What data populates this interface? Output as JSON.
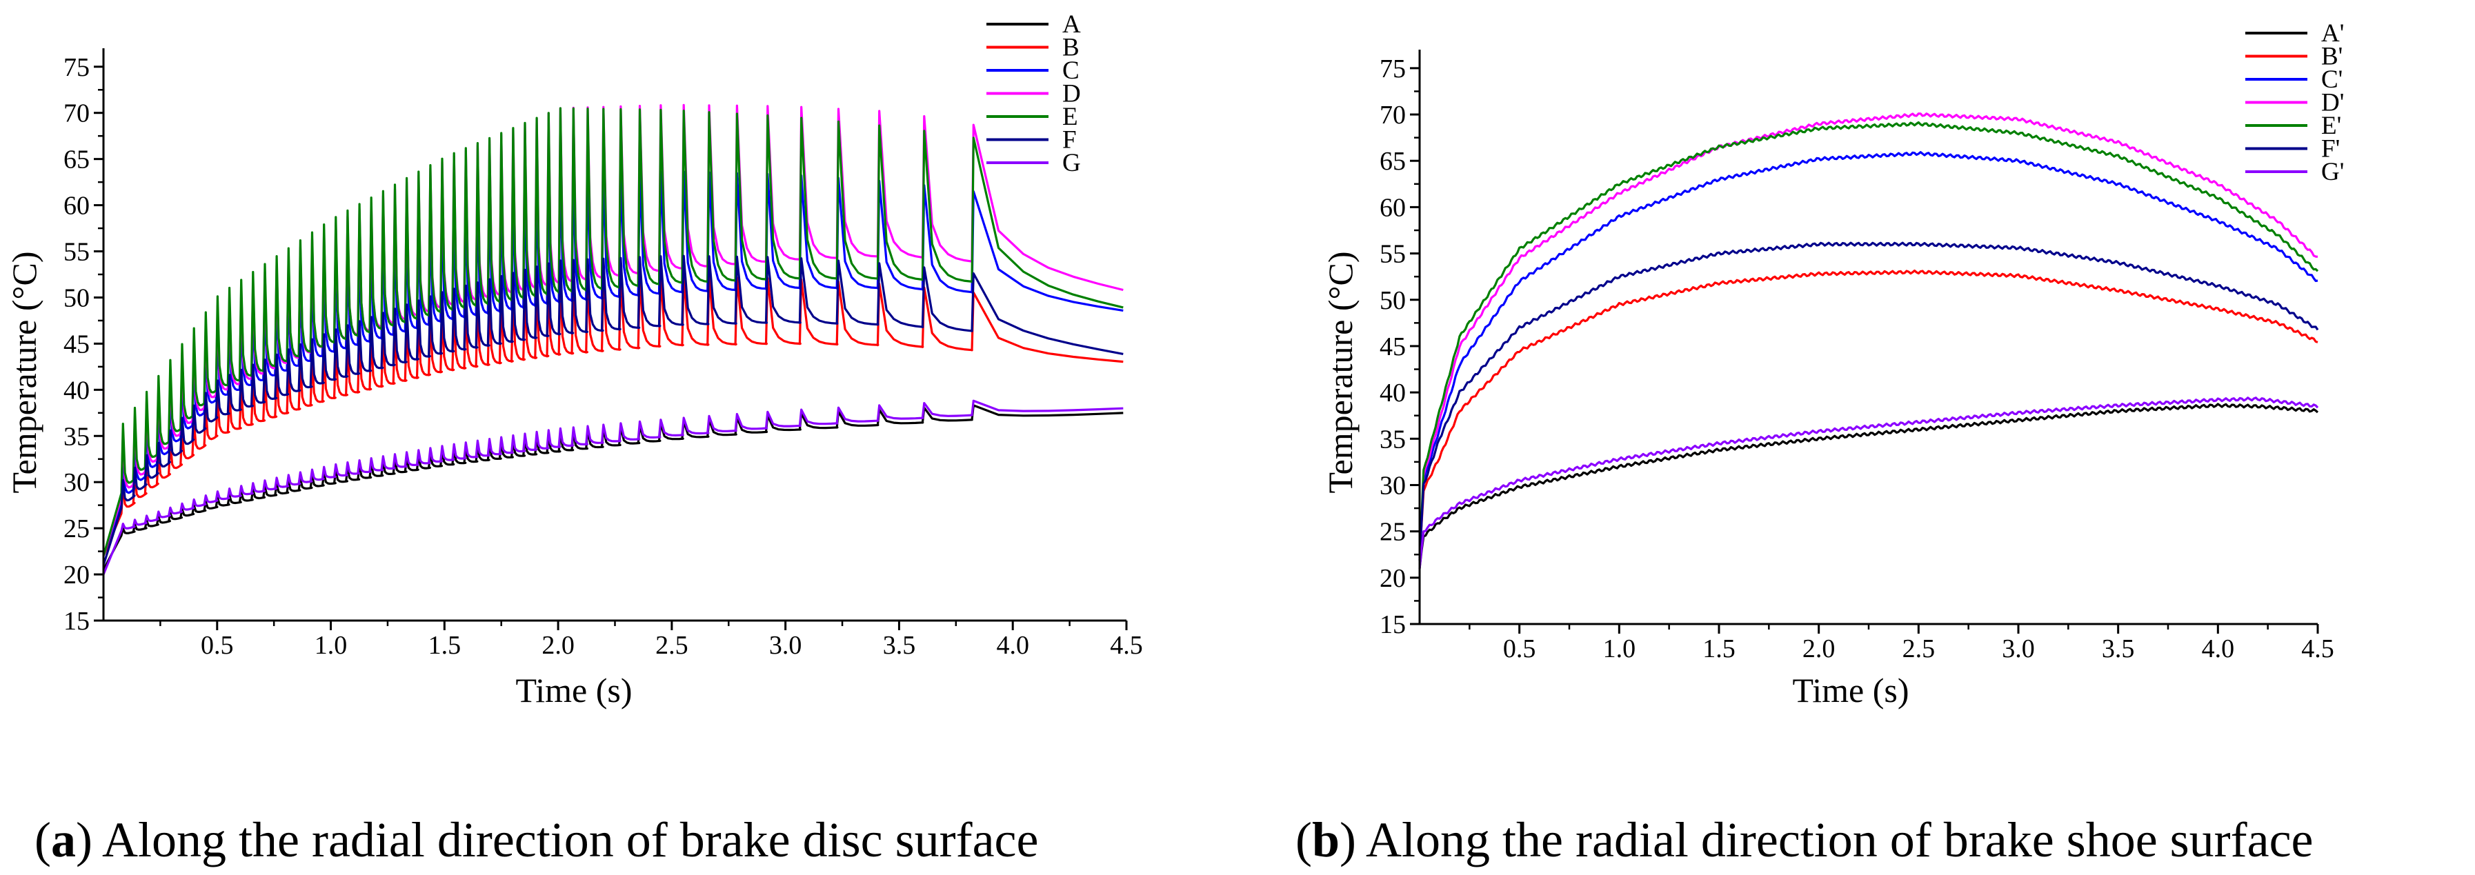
{
  "chart_data": [
    {
      "type": "line",
      "panel": "a",
      "xlabel": "Time (s)",
      "ylabel": "Temperature (°C)",
      "xlim": [
        0,
        4.5
      ],
      "ylim": [
        15,
        77
      ],
      "xticks": [
        0.5,
        1.0,
        1.5,
        2.0,
        2.5,
        3.0,
        3.5,
        4.0,
        4.5
      ],
      "xtick_labels": [
        "0.5",
        "1.0",
        "1.5",
        "2.0",
        "2.5",
        "3.0",
        "3.5",
        "4.0",
        "4.5"
      ],
      "yticks": [
        15,
        20,
        25,
        30,
        35,
        40,
        45,
        50,
        55,
        60,
        65,
        70,
        75
      ],
      "ytick_labels": [
        "15",
        "20",
        "25",
        "30",
        "35",
        "40",
        "45",
        "50",
        "55",
        "60",
        "65",
        "70",
        "75"
      ],
      "legend_position": "top-right outside",
      "caption_letter": "a",
      "caption_text": "Along the radial direction of brake disc surface",
      "series": [
        {
          "name": "A",
          "color": "#000000",
          "profile": "sawtooth",
          "start": 20.5,
          "x": [
            0.05,
            0.5,
            1.0,
            1.5,
            2.0,
            2.5,
            3.0,
            3.5,
            4.0,
            4.5
          ],
          "baseline": [
            24.0,
            27.3,
            29.8,
            31.8,
            33.3,
            34.6,
            35.6,
            36.3,
            37.0,
            37.5
          ],
          "peak_excess": 2.0
        },
        {
          "name": "B",
          "color": "#ff0000",
          "profile": "sawtooth",
          "start": 22.0,
          "x": [
            0.05,
            0.5,
            1.0,
            1.5,
            2.0,
            2.5,
            3.0,
            3.5,
            4.0,
            4.5
          ],
          "baseline": [
            26.0,
            35.0,
            39.0,
            42.0,
            43.8,
            44.8,
            45.0,
            44.8,
            44.0,
            43.0
          ],
          "peak_excess": 8.0
        },
        {
          "name": "C",
          "color": "#0000ff",
          "profile": "sawtooth",
          "start": 22.0,
          "x": [
            0.05,
            0.5,
            1.0,
            1.5,
            2.0,
            2.5,
            3.0,
            3.5,
            4.0,
            4.5
          ],
          "baseline": [
            27.0,
            39.0,
            44.0,
            47.5,
            49.5,
            50.5,
            51.0,
            51.0,
            50.3,
            48.5
          ],
          "peak_excess": 14.0
        },
        {
          "name": "D",
          "color": "#ff00ff",
          "profile": "sawtooth",
          "start": 22.0,
          "x": [
            0.05,
            0.5,
            1.0,
            1.5,
            2.0,
            2.5,
            3.0,
            3.5,
            4.0,
            4.5
          ],
          "baseline": [
            27.5,
            39.5,
            45.0,
            49.0,
            51.5,
            53.0,
            54.0,
            54.5,
            53.5,
            50.7
          ],
          "peak_excess": 19.0
        },
        {
          "name": "E",
          "color": "#008000",
          "profile": "sawtooth",
          "start": 22.0,
          "x": [
            0.05,
            0.5,
            1.0,
            1.5,
            2.0,
            2.5,
            3.0,
            3.5,
            4.0,
            4.5
          ],
          "baseline": [
            28.0,
            40.0,
            45.0,
            48.5,
            50.5,
            51.5,
            52.0,
            52.0,
            51.5,
            48.8
          ],
          "peak_excess": 20.0
        },
        {
          "name": "F",
          "color": "#00008b",
          "profile": "sawtooth",
          "start": 21.0,
          "x": [
            0.05,
            0.5,
            1.0,
            1.5,
            2.0,
            2.5,
            3.0,
            3.5,
            4.0,
            4.5
          ],
          "baseline": [
            26.5,
            37.0,
            41.0,
            44.0,
            46.0,
            47.0,
            47.3,
            47.0,
            46.0,
            43.8
          ],
          "peak_excess": 8.0
        },
        {
          "name": "G",
          "color": "#8b00ff",
          "profile": "sawtooth",
          "start": 20.0,
          "x": [
            0.05,
            0.5,
            1.0,
            1.5,
            2.0,
            2.5,
            3.0,
            3.5,
            4.0,
            4.5
          ],
          "baseline": [
            24.5,
            28.0,
            30.5,
            32.3,
            33.8,
            35.0,
            36.0,
            36.8,
            37.5,
            38.0
          ],
          "peak_excess": 2.0
        }
      ]
    },
    {
      "type": "line",
      "panel": "b",
      "xlabel": "Time (s)",
      "ylabel": "Temperature (°C)",
      "xlim": [
        0,
        4.5
      ],
      "ylim": [
        15,
        77
      ],
      "xticks": [
        0.5,
        1.0,
        1.5,
        2.0,
        2.5,
        3.0,
        3.5,
        4.0,
        4.5
      ],
      "xtick_labels": [
        "0.5",
        "1.0",
        "1.5",
        "2.0",
        "2.5",
        "3.0",
        "3.5",
        "4.0",
        "4.5"
      ],
      "yticks": [
        15,
        20,
        25,
        30,
        35,
        40,
        45,
        50,
        55,
        60,
        65,
        70,
        75
      ],
      "ytick_labels": [
        "15",
        "20",
        "25",
        "30",
        "35",
        "40",
        "45",
        "50",
        "55",
        "60",
        "65",
        "70",
        "75"
      ],
      "legend_position": "top-right outside",
      "caption_letter": "b",
      "caption_text": "Along the radial direction of brake shoe surface",
      "series": [
        {
          "name": "A'",
          "color": "#000000",
          "profile": "smooth",
          "x": [
            0.0,
            0.02,
            0.1,
            0.2,
            0.5,
            1.0,
            1.5,
            2.0,
            2.5,
            3.0,
            3.5,
            4.0,
            4.2,
            4.5
          ],
          "y": [
            21.0,
            24.5,
            26.0,
            27.5,
            29.8,
            32.0,
            33.8,
            35.0,
            36.0,
            37.0,
            38.0,
            38.6,
            38.5,
            38.0
          ]
        },
        {
          "name": "B'",
          "color": "#ff0000",
          "profile": "smooth",
          "x": [
            0.0,
            0.02,
            0.1,
            0.2,
            0.5,
            1.0,
            1.5,
            2.0,
            2.5,
            3.0,
            3.5,
            4.0,
            4.3,
            4.5
          ],
          "y": [
            22.0,
            29.5,
            33.0,
            38.0,
            44.5,
            49.5,
            51.8,
            52.8,
            53.0,
            52.6,
            51.0,
            49.0,
            47.5,
            45.5
          ]
        },
        {
          "name": "C'",
          "color": "#0000ff",
          "profile": "smooth",
          "x": [
            0.0,
            0.02,
            0.1,
            0.2,
            0.5,
            1.0,
            1.5,
            2.0,
            2.5,
            3.0,
            3.5,
            4.0,
            4.3,
            4.5
          ],
          "y": [
            22.0,
            30.5,
            36.0,
            43.0,
            52.0,
            59.0,
            63.0,
            65.2,
            65.8,
            65.0,
            62.5,
            58.5,
            55.5,
            52.0
          ]
        },
        {
          "name": "D'",
          "color": "#ff00ff",
          "profile": "smooth",
          "x": [
            0.0,
            0.02,
            0.1,
            0.2,
            0.5,
            1.0,
            1.5,
            2.0,
            2.5,
            3.0,
            3.5,
            4.0,
            4.3,
            4.5
          ],
          "y": [
            22.0,
            31.0,
            37.0,
            45.0,
            54.5,
            61.5,
            66.5,
            69.0,
            70.0,
            69.5,
            67.0,
            62.5,
            58.5,
            54.5
          ]
        },
        {
          "name": "E'",
          "color": "#008000",
          "profile": "smooth",
          "x": [
            0.0,
            0.02,
            0.1,
            0.2,
            0.5,
            1.0,
            1.5,
            2.0,
            2.5,
            3.0,
            3.5,
            4.0,
            4.3,
            4.5
          ],
          "y": [
            22.0,
            31.5,
            38.0,
            46.0,
            55.5,
            62.5,
            66.5,
            68.5,
            69.0,
            68.0,
            65.5,
            61.0,
            57.0,
            53.0
          ]
        },
        {
          "name": "F'",
          "color": "#00008b",
          "profile": "smooth",
          "x": [
            0.0,
            0.02,
            0.1,
            0.2,
            0.5,
            1.0,
            1.5,
            2.0,
            2.5,
            3.0,
            3.5,
            4.0,
            4.3,
            4.5
          ],
          "y": [
            22.0,
            30.0,
            35.0,
            40.0,
            47.0,
            52.5,
            55.0,
            56.0,
            56.0,
            55.6,
            54.0,
            51.5,
            49.5,
            46.8
          ]
        },
        {
          "name": "G'",
          "color": "#8b00ff",
          "profile": "smooth",
          "x": [
            0.0,
            0.02,
            0.1,
            0.2,
            0.5,
            1.0,
            1.5,
            2.0,
            2.5,
            3.0,
            3.5,
            4.0,
            4.2,
            4.5
          ],
          "y": [
            21.0,
            25.0,
            26.5,
            28.0,
            30.5,
            32.8,
            34.5,
            35.8,
            36.8,
            37.8,
            38.6,
            39.2,
            39.3,
            38.5
          ]
        }
      ]
    }
  ]
}
